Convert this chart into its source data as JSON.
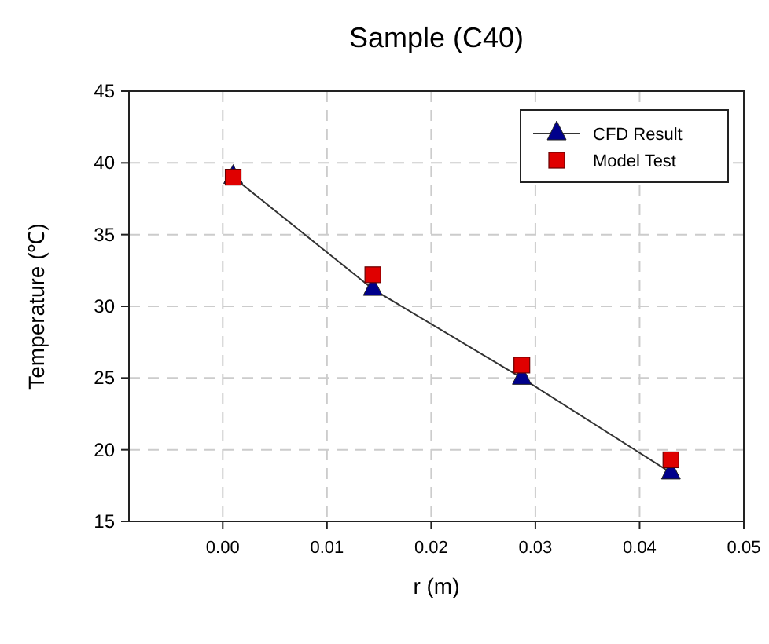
{
  "chart_data": {
    "type": "line",
    "title": "Sample (C40)",
    "xlabel": "r (m)",
    "ylabel": "Temperature (℃)",
    "x": [
      0.001,
      0.0144,
      0.0287,
      0.043
    ],
    "xlim": [
      -0.009,
      0.05
    ],
    "xticks": [
      {
        "value": 0,
        "label": "0.00"
      },
      {
        "value": 0.01,
        "label": "0.01"
      },
      {
        "value": 0.02,
        "label": "0.02"
      },
      {
        "value": 0.03,
        "label": "0.03"
      },
      {
        "value": 0.04,
        "label": "0.04"
      },
      {
        "value": 0.05,
        "label": "0.05"
      }
    ],
    "ylim": [
      15,
      45
    ],
    "yticks": [
      15,
      20,
      25,
      30,
      35,
      40,
      45
    ],
    "grid": true,
    "legend": "top right",
    "series": [
      {
        "name": "CFD Result",
        "color": "#00008b",
        "marker": "triangle",
        "values": [
          39.0,
          31.2,
          25.0,
          18.4
        ]
      },
      {
        "name": "Model Test",
        "type": "scatter",
        "color": "#e00000",
        "marker": "square",
        "values": [
          39.0,
          32.2,
          25.9,
          19.3
        ]
      }
    ]
  }
}
